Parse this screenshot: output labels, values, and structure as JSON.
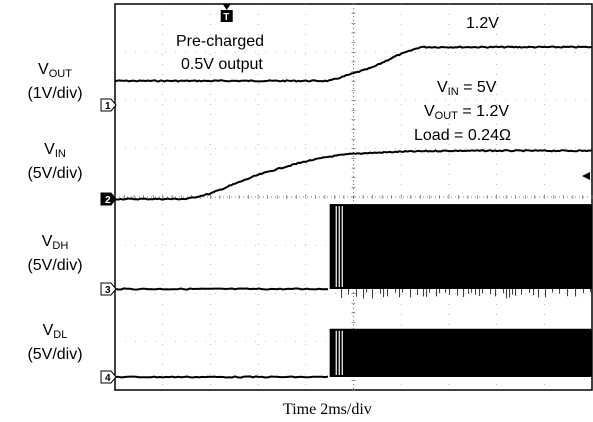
{
  "chart_data": {
    "type": "line",
    "title": "",
    "xlabel": "Time 2ms/div",
    "time_per_div_ms": 2,
    "x_divisions": 10,
    "y_divisions": 8,
    "grid": true,
    "channels": [
      {
        "id": 1,
        "name_main": "V",
        "name_sub": "OUT",
        "scale": "(1V/div)",
        "volts_per_div": 1,
        "marker": "1",
        "x_ms": [
          0,
          3.0,
          9.0,
          10.8,
          11.8,
          12.8,
          14.0,
          20.0
        ],
        "y_V": [
          0.5,
          0.5,
          0.5,
          0.78,
          1.02,
          1.2,
          1.2,
          1.2
        ]
      },
      {
        "id": 2,
        "name_main": "V",
        "name_sub": "IN",
        "scale": "(5V/div)",
        "volts_per_div": 5,
        "marker": "2",
        "x_ms": [
          0,
          2.0,
          3.0,
          4.0,
          5.0,
          6.0,
          7.0,
          8.0,
          9.0,
          10.0,
          12.0,
          14.0,
          20.0
        ],
        "y_V": [
          0,
          0,
          0,
          0.55,
          1.55,
          2.5,
          3.25,
          3.9,
          4.4,
          4.7,
          4.9,
          5.0,
          5.0
        ]
      },
      {
        "id": 3,
        "name_main": "V",
        "name_sub": "DH",
        "scale": "(5V/div)",
        "volts_per_div": 5,
        "marker": "3",
        "switching_start_ms": 9.0,
        "idle_V": 0,
        "switching_high_V": 8.8,
        "switching_low_V": -1.0
      },
      {
        "id": 4,
        "name_main": "V",
        "name_sub": "DL",
        "scale": "(5V/div)",
        "volts_per_div": 5,
        "marker": "4",
        "switching_start_ms": 9.0,
        "idle_V": 0,
        "switching_high_V": 5.0,
        "switching_low_V": 0
      }
    ],
    "annotations": {
      "precharge_line1": "Pre-charged",
      "precharge_line2": "0.5V output",
      "final_vout": "1.2V",
      "cond_vin_main": "V",
      "cond_vin_sub": "IN",
      "cond_vin_value": " = 5V",
      "cond_vout_main": "V",
      "cond_vout_sub": "OUT",
      "cond_vout_value": " = 1.2V",
      "cond_load": "Load = 0.24Ω",
      "trigger_marker": "T"
    }
  }
}
